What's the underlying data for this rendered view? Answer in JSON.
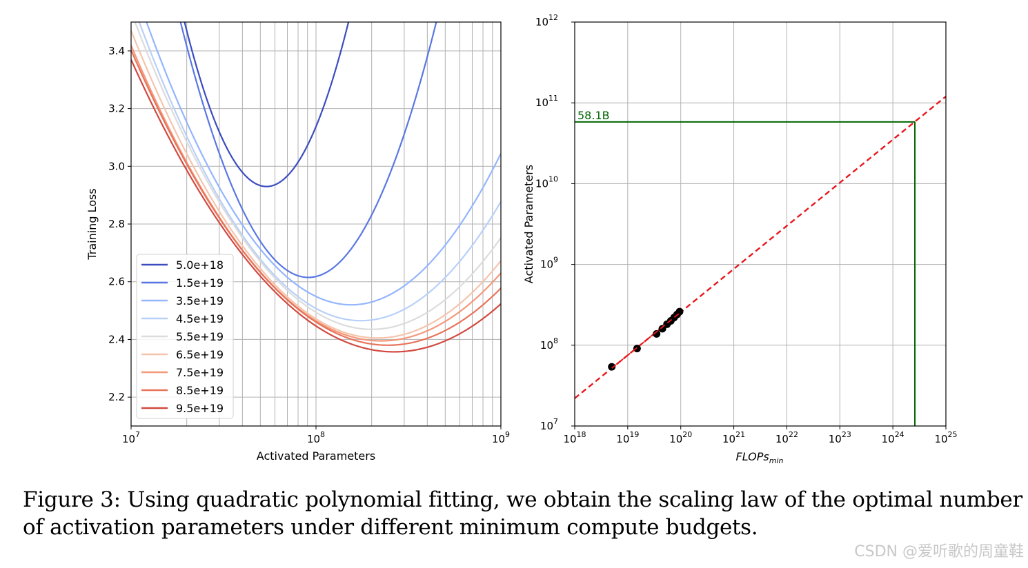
{
  "caption": {
    "label": "Figure 3:",
    "text": "Using quadratic polynomial fitting, we obtain the scaling law of the optimal number of activation parameters under different minimum compute budgets."
  },
  "watermark": "CSDN @爱听歌的周童鞋",
  "chart_data": [
    {
      "type": "line",
      "title": "",
      "xlabel": "Activated Parameters",
      "ylabel": "Training Loss",
      "xscale": "log",
      "xlim": [
        10000000,
        1000000000
      ],
      "ylim": [
        2.1,
        3.5
      ],
      "x_tick_labels": [
        "10",
        "10"
      ],
      "x_tick_exponents": [
        "7",
        "8",
        "9"
      ],
      "x_tick_base": "10",
      "yticks": [
        "2.2",
        "2.4",
        "2.6",
        "2.8",
        "3.0",
        "3.2",
        "3.4"
      ],
      "grid": true,
      "legend_position": "lower-left",
      "note": "each series is a parabola in log10(params): loss = min_loss + curvature * (log10(params) - log10(opt_params))^2",
      "series": [
        {
          "name": "5.0e+18",
          "color": "#3b4cc0",
          "opt_params": 54000000,
          "min_loss": 2.93,
          "curvature": 2.9
        },
        {
          "name": "1.5e+19",
          "color": "#5977e3",
          "opt_params": 91000000,
          "min_loss": 2.615,
          "curvature": 1.85
        },
        {
          "name": "3.5e+19",
          "color": "#93b5fe",
          "opt_params": 155000000,
          "min_loss": 2.52,
          "curvature": 0.8
        },
        {
          "name": "4.5e+19",
          "color": "#b8d0f9",
          "opt_params": 175000000,
          "min_loss": 2.465,
          "curvature": 0.72
        },
        {
          "name": "5.5e+19",
          "color": "#dddcdc",
          "opt_params": 200000000,
          "min_loss": 2.435,
          "curvature": 0.65
        },
        {
          "name": "6.5e+19",
          "color": "#f5c4ac",
          "opt_params": 215000000,
          "min_loss": 2.405,
          "curvature": 0.6
        },
        {
          "name": "7.5e+19",
          "color": "#f4987a",
          "opt_params": 225000000,
          "min_loss": 2.395,
          "curvature": 0.56
        },
        {
          "name": "8.5e+19",
          "color": "#e7745b",
          "opt_params": 245000000,
          "min_loss": 2.38,
          "curvature": 0.53
        },
        {
          "name": "9.5e+19",
          "color": "#d1493f",
          "opt_params": 265000000,
          "min_loss": 2.357,
          "curvature": 0.5
        }
      ]
    },
    {
      "type": "scatter",
      "title": "",
      "xlabel": "FLOPs",
      "xlabel_subscript": "min",
      "ylabel": "Activated Parameters",
      "xscale": "log",
      "yscale": "log",
      "xlim": [
        1e+18,
        1e+25
      ],
      "ylim": [
        10000000,
        1000000000000
      ],
      "x_tick_base": "10",
      "x_tick_exponents": [
        "18",
        "19",
        "20",
        "21",
        "22",
        "23",
        "24",
        "25"
      ],
      "y_tick_base": "10",
      "y_tick_exponents": [
        "7",
        "8",
        "9",
        "10",
        "11",
        "12"
      ],
      "grid": true,
      "points": {
        "x": [
          5e+18,
          1.5e+19,
          3.5e+19,
          4.5e+19,
          5.5e+19,
          6.5e+19,
          7.5e+19,
          8.5e+19,
          9.5e+19
        ],
        "y": [
          54000000,
          91000000,
          138000000,
          160000000,
          182000000,
          200000000,
          220000000,
          240000000,
          260000000
        ],
        "color": "#000000"
      },
      "fit_line": {
        "x": [
          1e+18,
          1e+25
        ],
        "y": [
          22000000,
          120000000000
        ],
        "color": "#e8171c",
        "style": "dashed"
      },
      "annotation": {
        "label": "58.1B",
        "x": 2.6e+24,
        "y": 58100000000,
        "color": "#006400"
      }
    }
  ]
}
